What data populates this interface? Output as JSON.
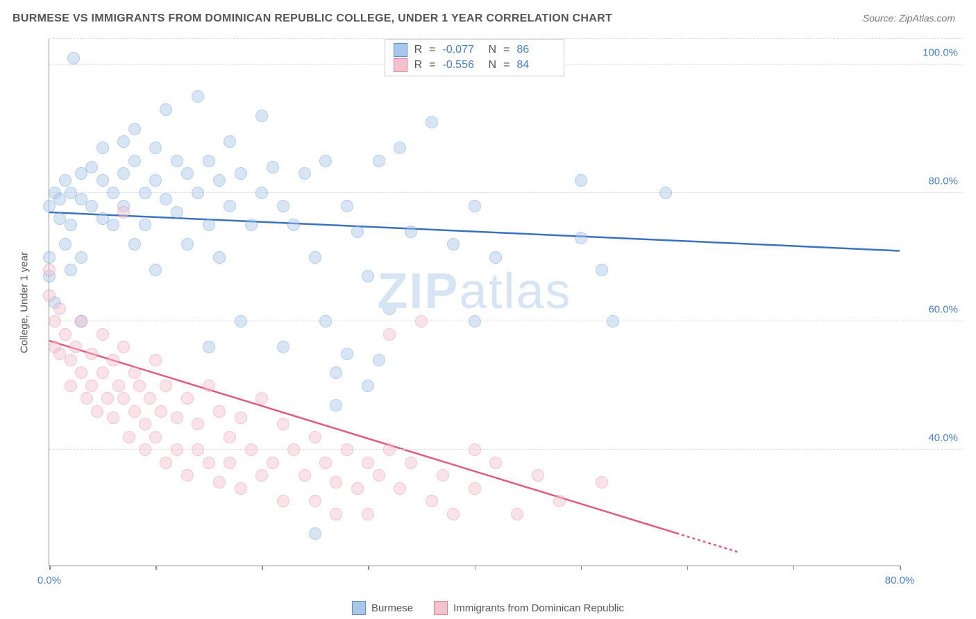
{
  "header": {
    "title": "BURMESE VS IMMIGRANTS FROM DOMINICAN REPUBLIC COLLEGE, UNDER 1 YEAR CORRELATION CHART",
    "source": "Source: ZipAtlas.com"
  },
  "watermark": {
    "text_bold": "ZIP",
    "text_light": "atlas",
    "color": "#d7e4f4"
  },
  "chart": {
    "type": "scatter",
    "y_axis_label": "College, Under 1 year",
    "xlim": [
      0,
      80
    ],
    "ylim": [
      22,
      104
    ],
    "x_ticks": [
      0,
      10,
      20,
      30,
      40,
      50,
      60,
      70,
      80
    ],
    "x_tick_labels_shown": {
      "0": "0.0%",
      "80": "80.0%"
    },
    "y_gridlines": [
      40,
      60,
      80,
      100,
      104
    ],
    "y_tick_labels": {
      "40": "40.0%",
      "60": "60.0%",
      "80": "80.0%",
      "100": "100.0%"
    },
    "axis_color": "#888888",
    "grid_color": "#dddddd",
    "tick_label_color": "#4a7fc4",
    "axis_label_color": "#555555",
    "background_color": "#ffffff",
    "point_radius": 9,
    "point_opacity": 0.45,
    "line_width": 2.5
  },
  "series": [
    {
      "id": "burmese",
      "label": "Burmese",
      "color_fill": "#a9c7eb",
      "color_stroke": "#5b8fd1",
      "line_color": "#3b72c0",
      "R": "-0.077",
      "N": "86",
      "regression": {
        "x1": 0,
        "y1": 77,
        "x2": 80,
        "y2": 71,
        "dash_from_x": null
      },
      "points": [
        [
          0,
          78
        ],
        [
          0,
          70
        ],
        [
          0,
          67
        ],
        [
          0.5,
          80
        ],
        [
          0.5,
          63
        ],
        [
          1,
          79
        ],
        [
          1,
          76
        ],
        [
          1.5,
          72
        ],
        [
          1.5,
          82
        ],
        [
          2,
          80
        ],
        [
          2,
          75
        ],
        [
          2,
          68
        ],
        [
          2.3,
          101
        ],
        [
          3,
          83
        ],
        [
          3,
          79
        ],
        [
          3,
          70
        ],
        [
          3,
          60
        ],
        [
          4,
          84
        ],
        [
          4,
          78
        ],
        [
          5,
          87
        ],
        [
          5,
          82
        ],
        [
          5,
          76
        ],
        [
          6,
          80
        ],
        [
          6,
          75
        ],
        [
          7,
          88
        ],
        [
          7,
          83
        ],
        [
          7,
          78
        ],
        [
          8,
          90
        ],
        [
          8,
          85
        ],
        [
          8,
          72
        ],
        [
          9,
          80
        ],
        [
          9,
          75
        ],
        [
          10,
          87
        ],
        [
          10,
          82
        ],
        [
          10,
          68
        ],
        [
          11,
          93
        ],
        [
          11,
          79
        ],
        [
          12,
          85
        ],
        [
          12,
          77
        ],
        [
          13,
          83
        ],
        [
          13,
          72
        ],
        [
          14,
          95
        ],
        [
          14,
          80
        ],
        [
          15,
          85
        ],
        [
          15,
          75
        ],
        [
          15,
          56
        ],
        [
          16,
          82
        ],
        [
          16,
          70
        ],
        [
          17,
          88
        ],
        [
          17,
          78
        ],
        [
          18,
          83
        ],
        [
          18,
          60
        ],
        [
          19,
          75
        ],
        [
          20,
          92
        ],
        [
          20,
          80
        ],
        [
          21,
          84
        ],
        [
          22,
          78
        ],
        [
          22,
          56
        ],
        [
          23,
          75
        ],
        [
          24,
          83
        ],
        [
          25,
          70
        ],
        [
          26,
          85
        ],
        [
          26,
          60
        ],
        [
          27,
          52
        ],
        [
          27,
          47
        ],
        [
          28,
          78
        ],
        [
          28,
          55
        ],
        [
          29,
          74
        ],
        [
          30,
          67
        ],
        [
          30,
          50
        ],
        [
          31,
          85
        ],
        [
          31,
          54
        ],
        [
          32,
          62
        ],
        [
          33,
          87
        ],
        [
          34,
          74
        ],
        [
          36,
          91
        ],
        [
          38,
          72
        ],
        [
          40,
          78
        ],
        [
          40,
          60
        ],
        [
          42,
          70
        ],
        [
          50,
          82
        ],
        [
          50,
          73
        ],
        [
          52,
          68
        ],
        [
          53,
          60
        ],
        [
          58,
          80
        ],
        [
          25,
          27
        ]
      ]
    },
    {
      "id": "dominican",
      "label": "Immigrants from Dominican Republic",
      "color_fill": "#f4c2cd",
      "color_stroke": "#e07f9a",
      "line_color": "#e05a7d",
      "R": "-0.556",
      "N": "84",
      "regression": {
        "x1": 0,
        "y1": 57,
        "x2": 65,
        "y2": 24,
        "dash_from_x": 59
      },
      "points": [
        [
          0,
          68
        ],
        [
          0,
          64
        ],
        [
          0.5,
          60
        ],
        [
          0.5,
          56
        ],
        [
          1,
          62
        ],
        [
          1,
          55
        ],
        [
          1.5,
          58
        ],
        [
          2,
          54
        ],
        [
          2,
          50
        ],
        [
          2.5,
          56
        ],
        [
          3,
          60
        ],
        [
          3,
          52
        ],
        [
          3.5,
          48
        ],
        [
          4,
          55
        ],
        [
          4,
          50
        ],
        [
          4.5,
          46
        ],
        [
          5,
          58
        ],
        [
          5,
          52
        ],
        [
          5.5,
          48
        ],
        [
          6,
          54
        ],
        [
          6,
          45
        ],
        [
          6.5,
          50
        ],
        [
          7,
          56
        ],
        [
          7,
          48
        ],
        [
          7.5,
          42
        ],
        [
          8,
          52
        ],
        [
          8,
          46
        ],
        [
          8.5,
          50
        ],
        [
          9,
          44
        ],
        [
          9,
          40
        ],
        [
          9.5,
          48
        ],
        [
          10,
          54
        ],
        [
          10,
          42
        ],
        [
          10.5,
          46
        ],
        [
          11,
          50
        ],
        [
          11,
          38
        ],
        [
          12,
          45
        ],
        [
          12,
          40
        ],
        [
          13,
          48
        ],
        [
          13,
          36
        ],
        [
          14,
          44
        ],
        [
          14,
          40
        ],
        [
          15,
          50
        ],
        [
          15,
          38
        ],
        [
          16,
          46
        ],
        [
          16,
          35
        ],
        [
          17,
          42
        ],
        [
          17,
          38
        ],
        [
          18,
          45
        ],
        [
          18,
          34
        ],
        [
          19,
          40
        ],
        [
          20,
          48
        ],
        [
          20,
          36
        ],
        [
          21,
          38
        ],
        [
          22,
          44
        ],
        [
          22,
          32
        ],
        [
          23,
          40
        ],
        [
          24,
          36
        ],
        [
          25,
          42
        ],
        [
          25,
          32
        ],
        [
          26,
          38
        ],
        [
          27,
          35
        ],
        [
          27,
          30
        ],
        [
          28,
          40
        ],
        [
          29,
          34
        ],
        [
          30,
          38
        ],
        [
          30,
          30
        ],
        [
          31,
          36
        ],
        [
          32,
          40
        ],
        [
          32,
          58
        ],
        [
          33,
          34
        ],
        [
          34,
          38
        ],
        [
          35,
          60
        ],
        [
          36,
          32
        ],
        [
          37,
          36
        ],
        [
          38,
          30
        ],
        [
          40,
          40
        ],
        [
          40,
          34
        ],
        [
          42,
          38
        ],
        [
          44,
          30
        ],
        [
          46,
          36
        ],
        [
          48,
          32
        ],
        [
          52,
          35
        ],
        [
          7,
          77
        ]
      ]
    }
  ]
}
